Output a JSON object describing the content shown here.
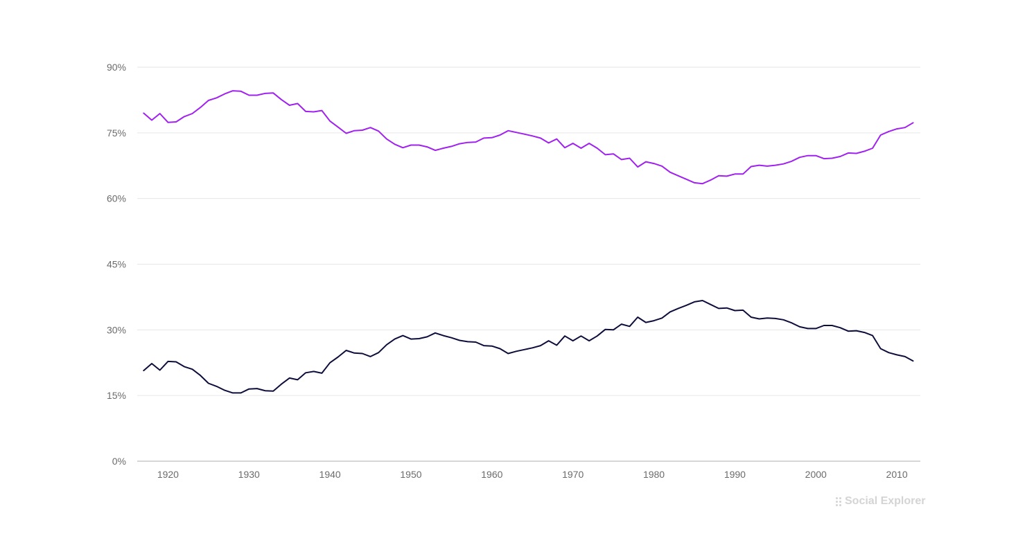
{
  "chart_data": {
    "type": "line",
    "title": "",
    "xlabel": "",
    "ylabel": "",
    "ylim": [
      0,
      90
    ],
    "xlim": [
      1917,
      2012
    ],
    "y_ticks": [
      "0%",
      "15%",
      "30%",
      "45%",
      "60%",
      "75%",
      "90%"
    ],
    "y_tick_values": [
      0,
      15,
      30,
      45,
      60,
      75,
      90
    ],
    "x_ticks": [
      "1920",
      "1930",
      "1940",
      "1950",
      "1960",
      "1970",
      "1980",
      "1990",
      "2000",
      "2010"
    ],
    "x_tick_values": [
      1920,
      1930,
      1940,
      1950,
      1960,
      1970,
      1980,
      1990,
      2000,
      2010
    ],
    "grid": true,
    "legend": "none",
    "x": [
      1917,
      1918,
      1919,
      1920,
      1921,
      1922,
      1923,
      1924,
      1925,
      1926,
      1927,
      1928,
      1929,
      1930,
      1931,
      1932,
      1933,
      1934,
      1935,
      1936,
      1937,
      1938,
      1939,
      1940,
      1941,
      1942,
      1943,
      1944,
      1945,
      1946,
      1947,
      1948,
      1949,
      1950,
      1951,
      1952,
      1953,
      1954,
      1955,
      1956,
      1957,
      1958,
      1959,
      1960,
      1961,
      1962,
      1963,
      1964,
      1965,
      1966,
      1967,
      1968,
      1969,
      1970,
      1971,
      1972,
      1973,
      1974,
      1975,
      1976,
      1977,
      1978,
      1979,
      1980,
      1981,
      1982,
      1983,
      1984,
      1985,
      1986,
      1987,
      1988,
      1989,
      1990,
      1991,
      1992,
      1993,
      1994,
      1995,
      1996,
      1997,
      1998,
      1999,
      2000,
      2001,
      2002,
      2003,
      2004,
      2005,
      2006,
      2007,
      2008,
      2009,
      2010,
      2011,
      2012
    ],
    "series": [
      {
        "color": "#a020f0",
        "values": [
          79.5,
          77.9,
          79.4,
          77.4,
          77.5,
          78.7,
          79.4,
          80.8,
          82.4,
          83.0,
          83.9,
          84.6,
          84.5,
          83.6,
          83.6,
          84.0,
          84.1,
          82.6,
          81.3,
          81.7,
          79.9,
          79.8,
          80.1,
          77.7,
          76.3,
          74.9,
          75.5,
          75.6,
          76.2,
          75.4,
          73.6,
          72.4,
          71.6,
          72.2,
          72.2,
          71.8,
          71.0,
          71.5,
          71.9,
          72.5,
          72.8,
          72.9,
          73.8,
          73.9,
          74.5,
          75.5,
          75.1,
          74.7,
          74.3,
          73.8,
          72.7,
          73.6,
          71.6,
          72.6,
          71.5,
          72.6,
          71.5,
          70.0,
          70.2,
          68.9,
          69.2,
          67.2,
          68.4,
          68.0,
          67.4,
          66.0,
          65.2,
          64.4,
          63.6,
          63.4,
          64.2,
          65.2,
          65.1,
          65.6,
          65.6,
          67.3,
          67.6,
          67.4,
          67.6,
          67.9,
          68.5,
          69.4,
          69.8,
          69.8,
          69.1,
          69.2,
          69.6,
          70.4,
          70.3,
          70.8,
          71.5,
          74.5,
          75.3,
          75.9,
          76.2,
          77.3
        ]
      },
      {
        "color": "#0d0d3b",
        "values": [
          20.7,
          22.3,
          20.8,
          22.8,
          22.7,
          21.6,
          21.0,
          19.6,
          17.8,
          17.1,
          16.2,
          15.6,
          15.6,
          16.5,
          16.6,
          16.1,
          16.0,
          17.6,
          19.0,
          18.6,
          20.2,
          20.5,
          20.1,
          22.5,
          23.8,
          25.3,
          24.7,
          24.6,
          23.9,
          24.8,
          26.6,
          27.9,
          28.7,
          27.9,
          28.0,
          28.4,
          29.3,
          28.7,
          28.2,
          27.6,
          27.3,
          27.2,
          26.4,
          26.3,
          25.7,
          24.6,
          25.1,
          25.5,
          25.9,
          26.4,
          27.5,
          26.5,
          28.6,
          27.5,
          28.6,
          27.5,
          28.6,
          30.1,
          30.0,
          31.3,
          30.8,
          32.9,
          31.7,
          32.1,
          32.7,
          34.1,
          34.9,
          35.6,
          36.4,
          36.7,
          35.8,
          34.9,
          35.0,
          34.4,
          34.5,
          32.9,
          32.5,
          32.7,
          32.6,
          32.3,
          31.6,
          30.7,
          30.3,
          30.3,
          31.0,
          31.0,
          30.5,
          29.7,
          29.8,
          29.4,
          28.7,
          25.7,
          24.8,
          24.3,
          23.9,
          22.9
        ]
      }
    ]
  },
  "watermark": {
    "text": "Social Explorer"
  }
}
